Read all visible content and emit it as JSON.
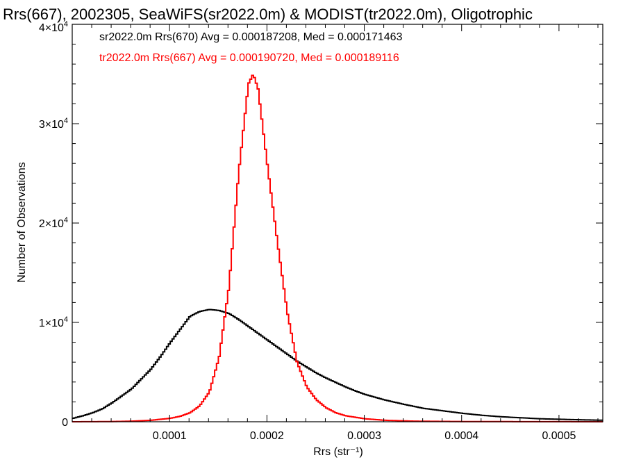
{
  "chart_data": {
    "type": "line",
    "title": "Rrs(667), 2002305, SeaWiFS(sr2022.0m) & MODIST(tr2022.0m), Oligotrophic",
    "xlabel": "Rrs (str⁻¹)",
    "ylabel": "Number of Observations",
    "xlim": [
      0.0,
      0.000545
    ],
    "ylim": [
      0,
      40000
    ],
    "x_ticks": [
      0.0001,
      0.0002,
      0.0003,
      0.0004,
      0.0005
    ],
    "x_tick_labels": [
      "0.0001",
      "0.0002",
      "0.0003",
      "0.0004",
      "0.0005"
    ],
    "y_ticks": [
      0,
      10000,
      20000,
      30000,
      40000
    ],
    "y_tick_labels": [
      {
        "base": "0",
        "exp": ""
      },
      {
        "base": "1×10",
        "exp": "4"
      },
      {
        "base": "2×10",
        "exp": "4"
      },
      {
        "base": "3×10",
        "exp": "4"
      },
      {
        "base": "4×10",
        "exp": "4"
      }
    ],
    "step": "histogram",
    "annotations": [
      {
        "text": "sr2022.0m Rrs(670) Avg = 0.000187208, Med = 0.000171463",
        "color": "#000000"
      },
      {
        "text": "tr2022.0m Rrs(667) Avg = 0.000190720, Med = 0.000189116",
        "color": "#ff0000"
      }
    ],
    "series": [
      {
        "color": "#000000",
        "x": [
          0.0,
          1e-05,
          2e-05,
          3e-05,
          4e-05,
          5e-05,
          6e-05,
          7e-05,
          8e-05,
          9e-05,
          0.0001,
          0.00011,
          0.00012,
          0.00013,
          0.00014,
          0.00015,
          0.00016,
          0.00017,
          0.00018,
          0.00019,
          0.0002,
          0.00021,
          0.00022,
          0.00023,
          0.00024,
          0.00025,
          0.00026,
          0.00027,
          0.00028,
          0.00029,
          0.0003,
          0.00032,
          0.00034,
          0.00036,
          0.00038,
          0.0004,
          0.00042,
          0.00044,
          0.00046,
          0.00048,
          0.0005,
          0.00052,
          0.000545
        ],
        "y": [
          350,
          600,
          900,
          1300,
          1900,
          2600,
          3300,
          4300,
          5300,
          6600,
          8000,
          9300,
          10600,
          11100,
          11300,
          11200,
          10900,
          10300,
          9600,
          8900,
          8200,
          7500,
          6800,
          6100,
          5500,
          4900,
          4400,
          3950,
          3500,
          3100,
          2750,
          2200,
          1750,
          1350,
          1100,
          850,
          650,
          500,
          400,
          300,
          250,
          200,
          150
        ]
      },
      {
        "color": "#ff0000",
        "x": [
          0.0,
          4e-05,
          6e-05,
          8e-05,
          0.0001,
          0.00011,
          0.00012,
          0.00013,
          0.00014,
          0.00015,
          0.00016,
          0.00017,
          0.00018,
          0.000185,
          0.00019,
          0.0002,
          0.00021,
          0.00022,
          0.00023,
          0.00024,
          0.00025,
          0.00026,
          0.00027,
          0.00028,
          0.0003,
          0.00032,
          0.00035,
          0.0004,
          0.000545
        ],
        "y": [
          0,
          20,
          60,
          150,
          350,
          550,
          900,
          1600,
          3000,
          6500,
          13500,
          25000,
          34000,
          35000,
          33500,
          25500,
          18000,
          11000,
          6000,
          3500,
          2200,
          1400,
          900,
          600,
          300,
          150,
          60,
          20,
          0
        ]
      }
    ]
  }
}
